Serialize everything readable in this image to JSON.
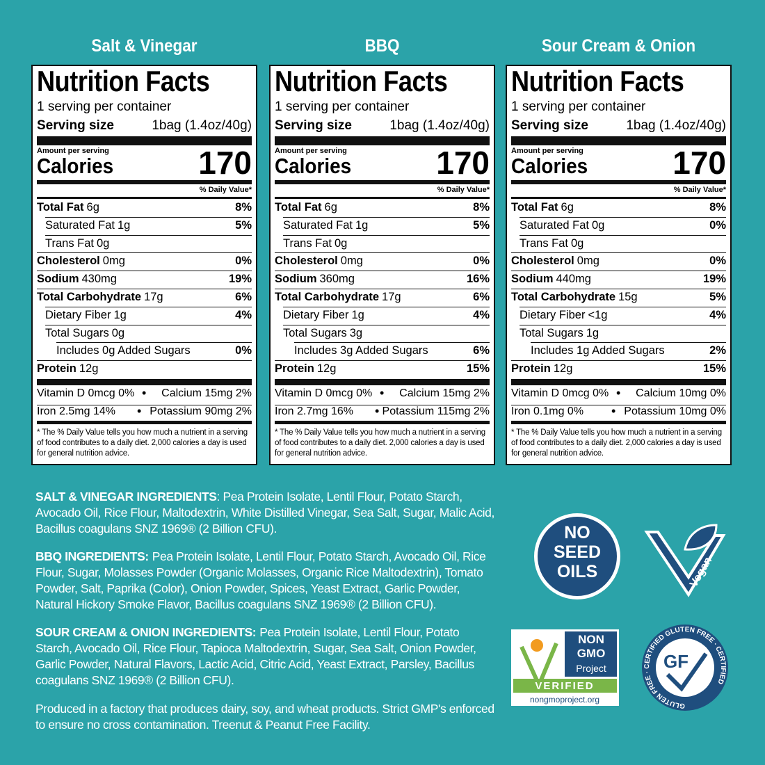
{
  "panels": [
    {
      "flavor": "Salt & Vinegar",
      "title": "Nutrition Facts",
      "servings": "1 serving per container",
      "serving_size_label": "Serving size",
      "serving_size": "1bag (1.4oz/40g)",
      "amount_per_serving": "Amount per serving",
      "calories_label": "Calories",
      "calories": "170",
      "dv_header": "% Daily Value*",
      "rows": [
        {
          "name": "Total Fat",
          "amount": "6g",
          "dv": "8%"
        },
        {
          "name": "Saturated Fat",
          "amount": "1g",
          "dv": "5%"
        },
        {
          "name": "Trans Fat",
          "amount": "0g"
        },
        {
          "name": "Cholesterol",
          "amount": "0mg",
          "dv": "0%"
        },
        {
          "name": "Sodium",
          "amount": "430mg",
          "dv": "19%"
        },
        {
          "name": "Total Carbohydrate",
          "amount": "17g",
          "dv": "6%"
        },
        {
          "name": "Dietary Fiber",
          "amount": "1g",
          "dv": "4%"
        },
        {
          "name": "Total Sugars",
          "amount": "0g"
        },
        {
          "name": "Includes 0g Added Sugars",
          "dv": "0%"
        },
        {
          "name": "Protein",
          "amount": "12g"
        }
      ],
      "vitamins": [
        [
          "Vitamin D 0mcg 0%",
          "Calcium 15mg 2%"
        ],
        [
          "Iron 2.5mg 14%",
          "Potassium 90mg 2%"
        ]
      ],
      "footnote": "* The % Daily Value tells you how much a nutrient in a serving of food contributes to a daily diet. 2,000 calories a day is used for general nutrition advice."
    },
    {
      "flavor": "BBQ",
      "title": "Nutrition Facts",
      "servings": "1 serving per container",
      "serving_size_label": "Serving size",
      "serving_size": "1bag (1.4oz/40g)",
      "amount_per_serving": "Amount per serving",
      "calories_label": "Calories",
      "calories": "170",
      "dv_header": "% Daily Value*",
      "rows": [
        {
          "name": "Total Fat",
          "amount": "6g",
          "dv": "8%"
        },
        {
          "name": "Saturated Fat",
          "amount": "1g",
          "dv": "5%"
        },
        {
          "name": "Trans Fat",
          "amount": "0g"
        },
        {
          "name": "Cholesterol",
          "amount": "0mg",
          "dv": "0%"
        },
        {
          "name": "Sodium",
          "amount": "360mg",
          "dv": "16%"
        },
        {
          "name": "Total Carbohydrate",
          "amount": "17g",
          "dv": "6%"
        },
        {
          "name": "Dietary Fiber",
          "amount": "1g",
          "dv": "4%"
        },
        {
          "name": "Total Sugars",
          "amount": "3g"
        },
        {
          "name": "Includes 3g Added Sugars",
          "dv": "6%"
        },
        {
          "name": "Protein",
          "amount": "12g",
          "dv": "15%"
        }
      ],
      "vitamins": [
        [
          "Vitamin D 0mcg 0%",
          "Calcium 15mg 2%"
        ],
        [
          "Iron 2.7mg 16%",
          "Potassium 115mg 2%"
        ]
      ],
      "footnote": "* The % Daily Value tells you how much a nutrient in a serving of food contributes to a daily diet. 2,000 calories a day is used for general nutrition advice."
    },
    {
      "flavor": "Sour Cream & Onion",
      "title": "Nutrition Facts",
      "servings": "1 serving per container",
      "serving_size_label": "Serving size",
      "serving_size": "1bag (1.4oz/40g)",
      "amount_per_serving": "Amount per serving",
      "calories_label": "Calories",
      "calories": "170",
      "dv_header": "% Daily Value*",
      "rows": [
        {
          "name": "Total Fat",
          "amount": "6g",
          "dv": "8%"
        },
        {
          "name": "Saturated Fat",
          "amount": "0g",
          "dv": "0%"
        },
        {
          "name": "Trans Fat",
          "amount": "0g"
        },
        {
          "name": "Cholesterol",
          "amount": "0mg",
          "dv": "0%"
        },
        {
          "name": "Sodium",
          "amount": "440mg",
          "dv": "19%"
        },
        {
          "name": "Total Carbohydrate",
          "amount": "15g",
          "dv": "5%"
        },
        {
          "name": "Dietary Fiber",
          "amount": "<1g",
          "dv": "4%"
        },
        {
          "name": "Total Sugars",
          "amount": "1g"
        },
        {
          "name": "Includes 1g Added Sugars",
          "dv": "2%"
        },
        {
          "name": "Protein",
          "amount": "12g",
          "dv": "15%"
        }
      ],
      "vitamins": [
        [
          "Vitamin D 0mcg 0%",
          "Calcium 10mg 0%"
        ],
        [
          "Iron 0.1mg 0%",
          "Potassium 10mg 0%"
        ]
      ],
      "footnote": "* The % Daily Value tells you how much a nutrient in a serving of food contributes to a daily diet. 2,000 calories a day is used for general nutrition advice."
    }
  ],
  "ingredients": [
    {
      "heading": "SALT & VINEGAR INGREDIENTS",
      "text": ": Pea Protein Isolate, Lentil Flour, Potato Starch, Avocado Oil, Rice Flour, Maltodextrin, White Distilled Vinegar, Sea Salt, Sugar, Malic Acid, Bacillus coagulans SNZ 1969® (2 Billion CFU)."
    },
    {
      "heading": "BBQ INGREDIENTS:",
      "text": "Pea Protein Isolate, Lentil Flour, Potato Starch, Avocado Oil, Rice Flour, Sugar, Molasses Powder (Organic Molasses, Organic Rice Maltodextrin), Tomato Powder, Salt, Paprika (Color), Onion Powder, Spices, Yeast Extract, Garlic Powder, Natural Hickory Smoke Flavor, Bacillus coagulans SNZ 1969® (2 Billion CFU)."
    },
    {
      "heading": "SOUR CREAM & ONION INGREDIENTS:",
      "text": "Pea Protein Isolate, Lentil Flour, Potato Starch, Avocado Oil, Rice Flour, Tapioca Maltodextrin, Sugar, Sea Salt, Onion Powder, Garlic Powder, Natural Flavors, Lactic Acid, Citric Acid, Yeast Extract, Parsley, Bacillus coagulans SNZ 1969® (2 Billion CFU)."
    }
  ],
  "facility_note": "Produced in a factory that produces dairy, soy, and wheat products. Strict GMP's enforced to ensure no cross contamination. Treenut & Peanut Free Facility.",
  "badges": {
    "no_seed_oils": [
      "NO",
      "SEED",
      "OILS"
    ],
    "vegan": "Vegan",
    "non_gmo": [
      "NON",
      "GMO",
      "Project",
      "VERIFIED",
      "nongmoproject.org"
    ],
    "gluten_free": [
      "GLUTEN FREE · CERTIFIED GLUTEN FREE · CERTIFIED",
      "GF"
    ]
  }
}
